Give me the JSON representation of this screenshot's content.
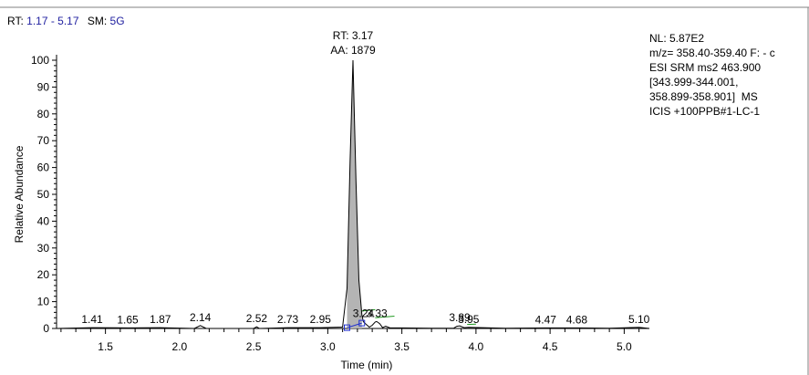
{
  "header": {
    "rt_label": "RT:",
    "rt_range": "1.17 - 5.17",
    "sm_label": "SM:",
    "sm_value": "5G"
  },
  "info_panel": {
    "lines": [
      "NL: 5.87E2",
      "m/z= 358.40-359.40 F: - c",
      "ESI SRM ms2 463.900",
      "[343.999-344.001,",
      "358.899-358.901]  MS",
      "ICIS +100PPB#1-LC-1"
    ]
  },
  "colors": {
    "peak_fill": "#b4b4b4",
    "peak_line": "#000000",
    "baseline_green": "#1f9a1f",
    "baseline_blue": "#1f2fd0",
    "header_value": "#2020a0"
  },
  "chart_data": {
    "type": "line",
    "xlabel": "Time (min)",
    "ylabel": "Relative Abundance",
    "xlim": [
      1.17,
      5.17
    ],
    "ylim": [
      0,
      100
    ],
    "x_ticks": [
      1.5,
      2.0,
      2.5,
      3.0,
      3.5,
      4.0,
      4.5,
      5.0
    ],
    "x_tick_labels": [
      "1.5",
      "2.0",
      "2.5",
      "3.0",
      "3.5",
      "4.0",
      "4.5",
      "5.0"
    ],
    "y_ticks": [
      0,
      10,
      20,
      30,
      40,
      50,
      60,
      70,
      80,
      90,
      100
    ],
    "y_tick_labels": [
      "0",
      "10",
      "20",
      "30",
      "40",
      "50",
      "60",
      "70",
      "80",
      "90",
      "100"
    ],
    "grid": false,
    "series": [
      {
        "x": [
          1.17,
          1.41,
          1.65,
          1.87,
          2.1,
          2.14,
          2.18,
          2.5,
          2.52,
          2.54,
          2.73,
          2.95,
          3.1,
          3.13,
          3.15,
          3.17,
          3.19,
          3.21,
          3.23,
          3.24,
          3.26,
          3.28,
          3.3,
          3.32,
          3.33,
          3.35,
          3.37,
          3.39,
          3.42,
          3.5,
          3.7,
          3.85,
          3.87,
          3.89,
          3.92,
          3.95,
          4.2,
          4.47,
          4.68,
          4.9,
          5.1,
          5.17
        ],
        "y": [
          0,
          0.3,
          0.2,
          0.3,
          0,
          1.1,
          0,
          0,
          0.6,
          0,
          0.3,
          0.3,
          0.5,
          15,
          62,
          100,
          55,
          18,
          5,
          2.5,
          1.5,
          0.5,
          1.2,
          2.4,
          2.6,
          1.8,
          0.3,
          0.8,
          0.2,
          0.2,
          0.1,
          0.1,
          0.8,
          1.0,
          0.3,
          0.4,
          0.1,
          0.2,
          0.2,
          0.1,
          0.4,
          0
        ]
      }
    ],
    "peak_annotation": {
      "rt_label": "RT: 3.17",
      "aa_label": "AA: 1879",
      "x": 3.17,
      "y": 100
    },
    "peak_labels": [
      {
        "text": "1.41",
        "x": 1.41,
        "y": 0.3
      },
      {
        "text": "1.65",
        "x": 1.65,
        "y": 0.2
      },
      {
        "text": "1.87",
        "x": 1.87,
        "y": 0.3
      },
      {
        "text": "2.14",
        "x": 2.14,
        "y": 1.1
      },
      {
        "text": "2.52",
        "x": 2.52,
        "y": 0.6
      },
      {
        "text": "2.73",
        "x": 2.73,
        "y": 0.3
      },
      {
        "text": "2.95",
        "x": 2.95,
        "y": 0.3
      },
      {
        "text": "3.24",
        "x": 3.24,
        "y": 2.5
      },
      {
        "text": "3.33",
        "x": 3.33,
        "y": 2.6
      },
      {
        "text": "3.89",
        "x": 3.89,
        "y": 1.0
      },
      {
        "text": "3.95",
        "x": 3.95,
        "y": 0.4
      },
      {
        "text": "4.47",
        "x": 4.47,
        "y": 0.2
      },
      {
        "text": "4.68",
        "x": 4.68,
        "y": 0.2
      },
      {
        "text": "5.10",
        "x": 5.1,
        "y": 0.4
      }
    ],
    "integration_baselines": [
      {
        "color": "blue",
        "x": [
          3.13,
          3.23
        ],
        "y": [
          0.3,
          2.0
        ]
      },
      {
        "color": "green",
        "x": [
          3.23,
          3.32
        ],
        "y": [
          6.5,
          7.0
        ]
      },
      {
        "color": "green",
        "x": [
          3.32,
          3.45
        ],
        "y": [
          4.0,
          4.6
        ]
      },
      {
        "color": "green",
        "x": [
          3.94,
          4.0
        ],
        "y": [
          1.5,
          1.6
        ]
      }
    ]
  }
}
